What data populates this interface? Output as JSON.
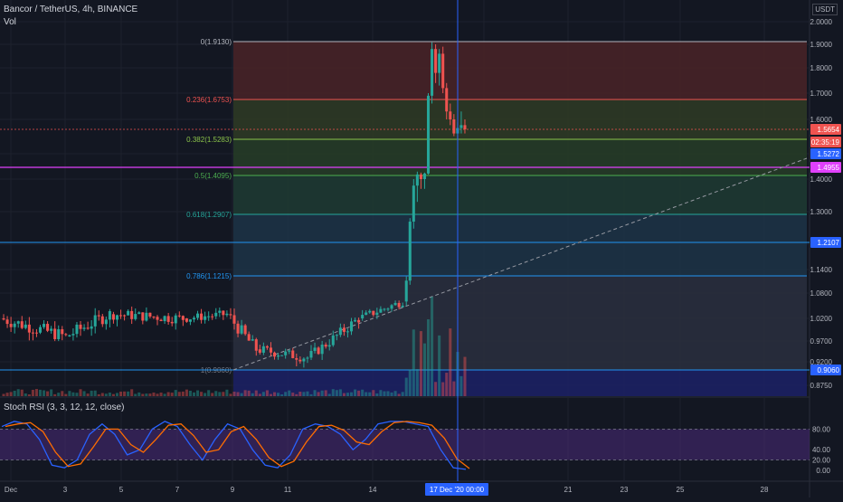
{
  "header": {
    "symbol": "Bancor / TetherUS, 4h, BINANCE",
    "vol_label": "Vol",
    "currency_badge": "USDT"
  },
  "price_axis": {
    "ticks": [
      "2.0000",
      "1.9000",
      "1.8000",
      "1.7000",
      "1.6000",
      "1.3000",
      "1.2000",
      "1.1400",
      "1.0800",
      "1.0200",
      "0.9700",
      "0.8750"
    ],
    "labels_extra": [
      "1.4000",
      "0.9200"
    ]
  },
  "price_badges": [
    {
      "text": "1.5654",
      "color": "#ef5350"
    },
    {
      "text": "02:35:19",
      "color": "#ef5350"
    },
    {
      "text": "1.5272",
      "color": "#2962ff"
    },
    {
      "text": "1.4955",
      "color": "#e040fb"
    },
    {
      "text": "1.2107",
      "color": "#2962ff"
    },
    {
      "text": "0.9060",
      "color": "#2962ff"
    }
  ],
  "fib_levels": [
    {
      "label": "0(1.9130)",
      "color": "#b2b5be",
      "fill": "#4a2327"
    },
    {
      "label": "0.236(1.6753)",
      "color": "#ef5350",
      "fill": "#2f3b24"
    },
    {
      "label": "0.382(1.5283)",
      "color": "#8bc34a",
      "fill": "#273d27"
    },
    {
      "label": "0.5(1.4095)",
      "color": "#4caf50",
      "fill": "#1f3b33"
    },
    {
      "label": "0.618(1.2907)",
      "color": "#26a69a",
      "fill": "#1d3446"
    },
    {
      "label": "0.786(1.1215)",
      "color": "#2196f3",
      "fill": "#2a2f3e"
    },
    {
      "label": "1(0.9060)",
      "color": "#787b86",
      "fill": "#1c2166"
    }
  ],
  "stoch": {
    "label": "Stoch RSI (3, 3, 12, 12, close)",
    "ticks": [
      "80.00",
      "40.00",
      "20.00",
      "0.00"
    ]
  },
  "time_axis": {
    "labels": [
      "Dec",
      "3",
      "5",
      "7",
      "9",
      "11",
      "14",
      "21",
      "23",
      "25",
      "28"
    ],
    "crosshair_label": "17 Dec '20   00:00"
  },
  "colors": {
    "up": "#26a69a",
    "down": "#ef5350",
    "crosshair": "#2962ff",
    "hline": "#2196f3",
    "magenta": "#e040fb"
  },
  "chart_data": {
    "type": "candlestick",
    "title": "Bancor / TetherUS, 4h, BINANCE",
    "ylim": [
      0.86,
      2.02
    ],
    "fib_retracement": [
      1.913,
      1.6753,
      1.5283,
      1.4095,
      1.2907,
      1.1215,
      0.906
    ],
    "horizontal_lines": [
      0.906,
      1.2107,
      1.4955
    ],
    "last_price": 1.5654,
    "close_countdown": "02:35:19"
  }
}
